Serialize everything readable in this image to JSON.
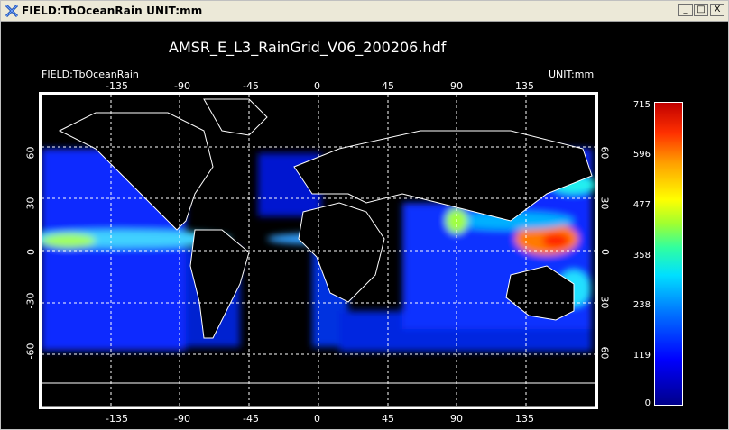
{
  "window": {
    "title": "FIELD:TbOceanRain  UNIT:mm",
    "buttons": {
      "minimize": "_",
      "maximize": "□",
      "close": "X"
    }
  },
  "plot": {
    "file_title": "AMSR_E_L3_RainGrid_V06_200206.hdf",
    "field_label": "FIELD:TbOceanRain",
    "unit_label": "UNIT:mm",
    "lon_ticks": [
      "-135",
      "-90",
      "-45",
      "0",
      "45",
      "90",
      "135"
    ],
    "lat_ticks": [
      "60",
      "30",
      "0",
      "-30",
      "-60"
    ]
  },
  "colorbar": {
    "ticks": [
      "715",
      "596",
      "477",
      "358",
      "238",
      "119",
      "0"
    ]
  },
  "chart_data": {
    "type": "heatmap",
    "title": "AMSR_E_L3_RainGrid_V06_200206.hdf",
    "xlabel": "",
    "ylabel": "",
    "x_ticks": [
      -135,
      -90,
      -45,
      0,
      45,
      90,
      135
    ],
    "y_ticks": [
      60,
      30,
      0,
      -30,
      -60
    ],
    "colorbar_range": [
      0,
      715
    ],
    "colorbar_ticks": [
      0,
      119,
      238,
      358,
      477,
      596,
      715
    ]
  }
}
